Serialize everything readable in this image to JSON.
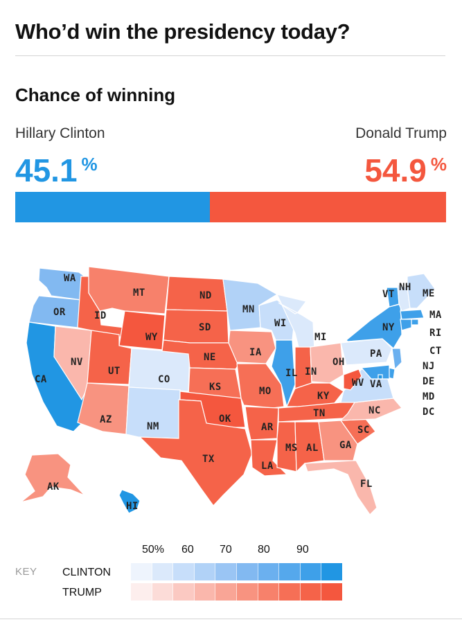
{
  "headline": "Who’d win the presidency today?",
  "subhead": "Chance of winning",
  "candidates": {
    "clinton": {
      "name": "Hillary Clinton",
      "pct": "45.1",
      "sym": "%",
      "value": 45.1,
      "color": "#2196e3"
    },
    "trump": {
      "name": "Donald Trump",
      "pct": "54.9",
      "sym": "%",
      "value": 54.9,
      "color": "#f4573e"
    }
  },
  "map": {
    "states": [
      {
        "abbr": "WA",
        "side": "clinton",
        "level": 5
      },
      {
        "abbr": "OR",
        "side": "clinton",
        "level": 5
      },
      {
        "abbr": "CA",
        "side": "clinton",
        "level": 9
      },
      {
        "abbr": "NV",
        "side": "trump",
        "level": 3
      },
      {
        "abbr": "ID",
        "side": "trump",
        "level": 8
      },
      {
        "abbr": "MT",
        "side": "trump",
        "level": 6
      },
      {
        "abbr": "WY",
        "side": "trump",
        "level": 9
      },
      {
        "abbr": "UT",
        "side": "trump",
        "level": 8
      },
      {
        "abbr": "AZ",
        "side": "trump",
        "level": 5
      },
      {
        "abbr": "CO",
        "side": "clinton",
        "level": 1
      },
      {
        "abbr": "NM",
        "side": "clinton",
        "level": 2
      },
      {
        "abbr": "ND",
        "side": "trump",
        "level": 8
      },
      {
        "abbr": "SD",
        "side": "trump",
        "level": 8
      },
      {
        "abbr": "NE",
        "side": "trump",
        "level": 8
      },
      {
        "abbr": "KS",
        "side": "trump",
        "level": 7
      },
      {
        "abbr": "OK",
        "side": "trump",
        "level": 9
      },
      {
        "abbr": "TX",
        "side": "trump",
        "level": 8
      },
      {
        "abbr": "MN",
        "side": "clinton",
        "level": 3
      },
      {
        "abbr": "IA",
        "side": "trump",
        "level": 5
      },
      {
        "abbr": "MO",
        "side": "trump",
        "level": 7
      },
      {
        "abbr": "AR",
        "side": "trump",
        "level": 8
      },
      {
        "abbr": "LA",
        "side": "trump",
        "level": 8
      },
      {
        "abbr": "WI",
        "side": "clinton",
        "level": 2
      },
      {
        "abbr": "IL",
        "side": "clinton",
        "level": 8
      },
      {
        "abbr": "MI",
        "side": "clinton",
        "level": 1
      },
      {
        "abbr": "IN",
        "side": "trump",
        "level": 8
      },
      {
        "abbr": "OH",
        "side": "trump",
        "level": 3
      },
      {
        "abbr": "KY",
        "side": "trump",
        "level": 8
      },
      {
        "abbr": "TN",
        "side": "trump",
        "level": 8
      },
      {
        "abbr": "MS",
        "side": "trump",
        "level": 8
      },
      {
        "abbr": "AL",
        "side": "trump",
        "level": 8
      },
      {
        "abbr": "GA",
        "side": "trump",
        "level": 5
      },
      {
        "abbr": "FL",
        "side": "trump",
        "level": 3
      },
      {
        "abbr": "SC",
        "side": "trump",
        "level": 7
      },
      {
        "abbr": "NC",
        "side": "trump",
        "level": 3
      },
      {
        "abbr": "VA",
        "side": "clinton",
        "level": 2
      },
      {
        "abbr": "WV",
        "side": "trump",
        "level": 9
      },
      {
        "abbr": "PA",
        "side": "clinton",
        "level": 1
      },
      {
        "abbr": "NY",
        "side": "clinton",
        "level": 8
      },
      {
        "abbr": "VT",
        "side": "clinton",
        "level": 8
      },
      {
        "abbr": "NH",
        "side": "clinton",
        "level": 1
      },
      {
        "abbr": "ME",
        "side": "clinton",
        "level": 2
      },
      {
        "abbr": "MA",
        "side": "clinton",
        "level": 8
      },
      {
        "abbr": "RI",
        "side": "clinton",
        "level": 8
      },
      {
        "abbr": "CT",
        "side": "clinton",
        "level": 8
      },
      {
        "abbr": "NJ",
        "side": "clinton",
        "level": 6
      },
      {
        "abbr": "DE",
        "side": "clinton",
        "level": 8
      },
      {
        "abbr": "MD",
        "side": "clinton",
        "level": 8
      },
      {
        "abbr": "DC",
        "side": "clinton",
        "level": 9
      },
      {
        "abbr": "AK",
        "side": "trump",
        "level": 5
      },
      {
        "abbr": "HI",
        "side": "clinton",
        "level": 9
      }
    ]
  },
  "key": {
    "label": "KEY",
    "ticks": [
      "50%",
      "60",
      "70",
      "80",
      "90"
    ],
    "rows": [
      {
        "name": "CLINTON",
        "colors": [
          "#eef4fd",
          "#dbe9fb",
          "#c7defa",
          "#b1d2f7",
          "#9ac5f4",
          "#82b9f1",
          "#6bb0ef",
          "#55a8ec",
          "#3ea0e9",
          "#2196e3"
        ]
      },
      {
        "name": "TRUMP",
        "colors": [
          "#fdeeed",
          "#fcdcd8",
          "#fbc9c2",
          "#fab7ac",
          "#f9a596",
          "#f89380",
          "#f7816b",
          "#f66f56",
          "#f56349",
          "#f4573e"
        ]
      }
    ]
  }
}
